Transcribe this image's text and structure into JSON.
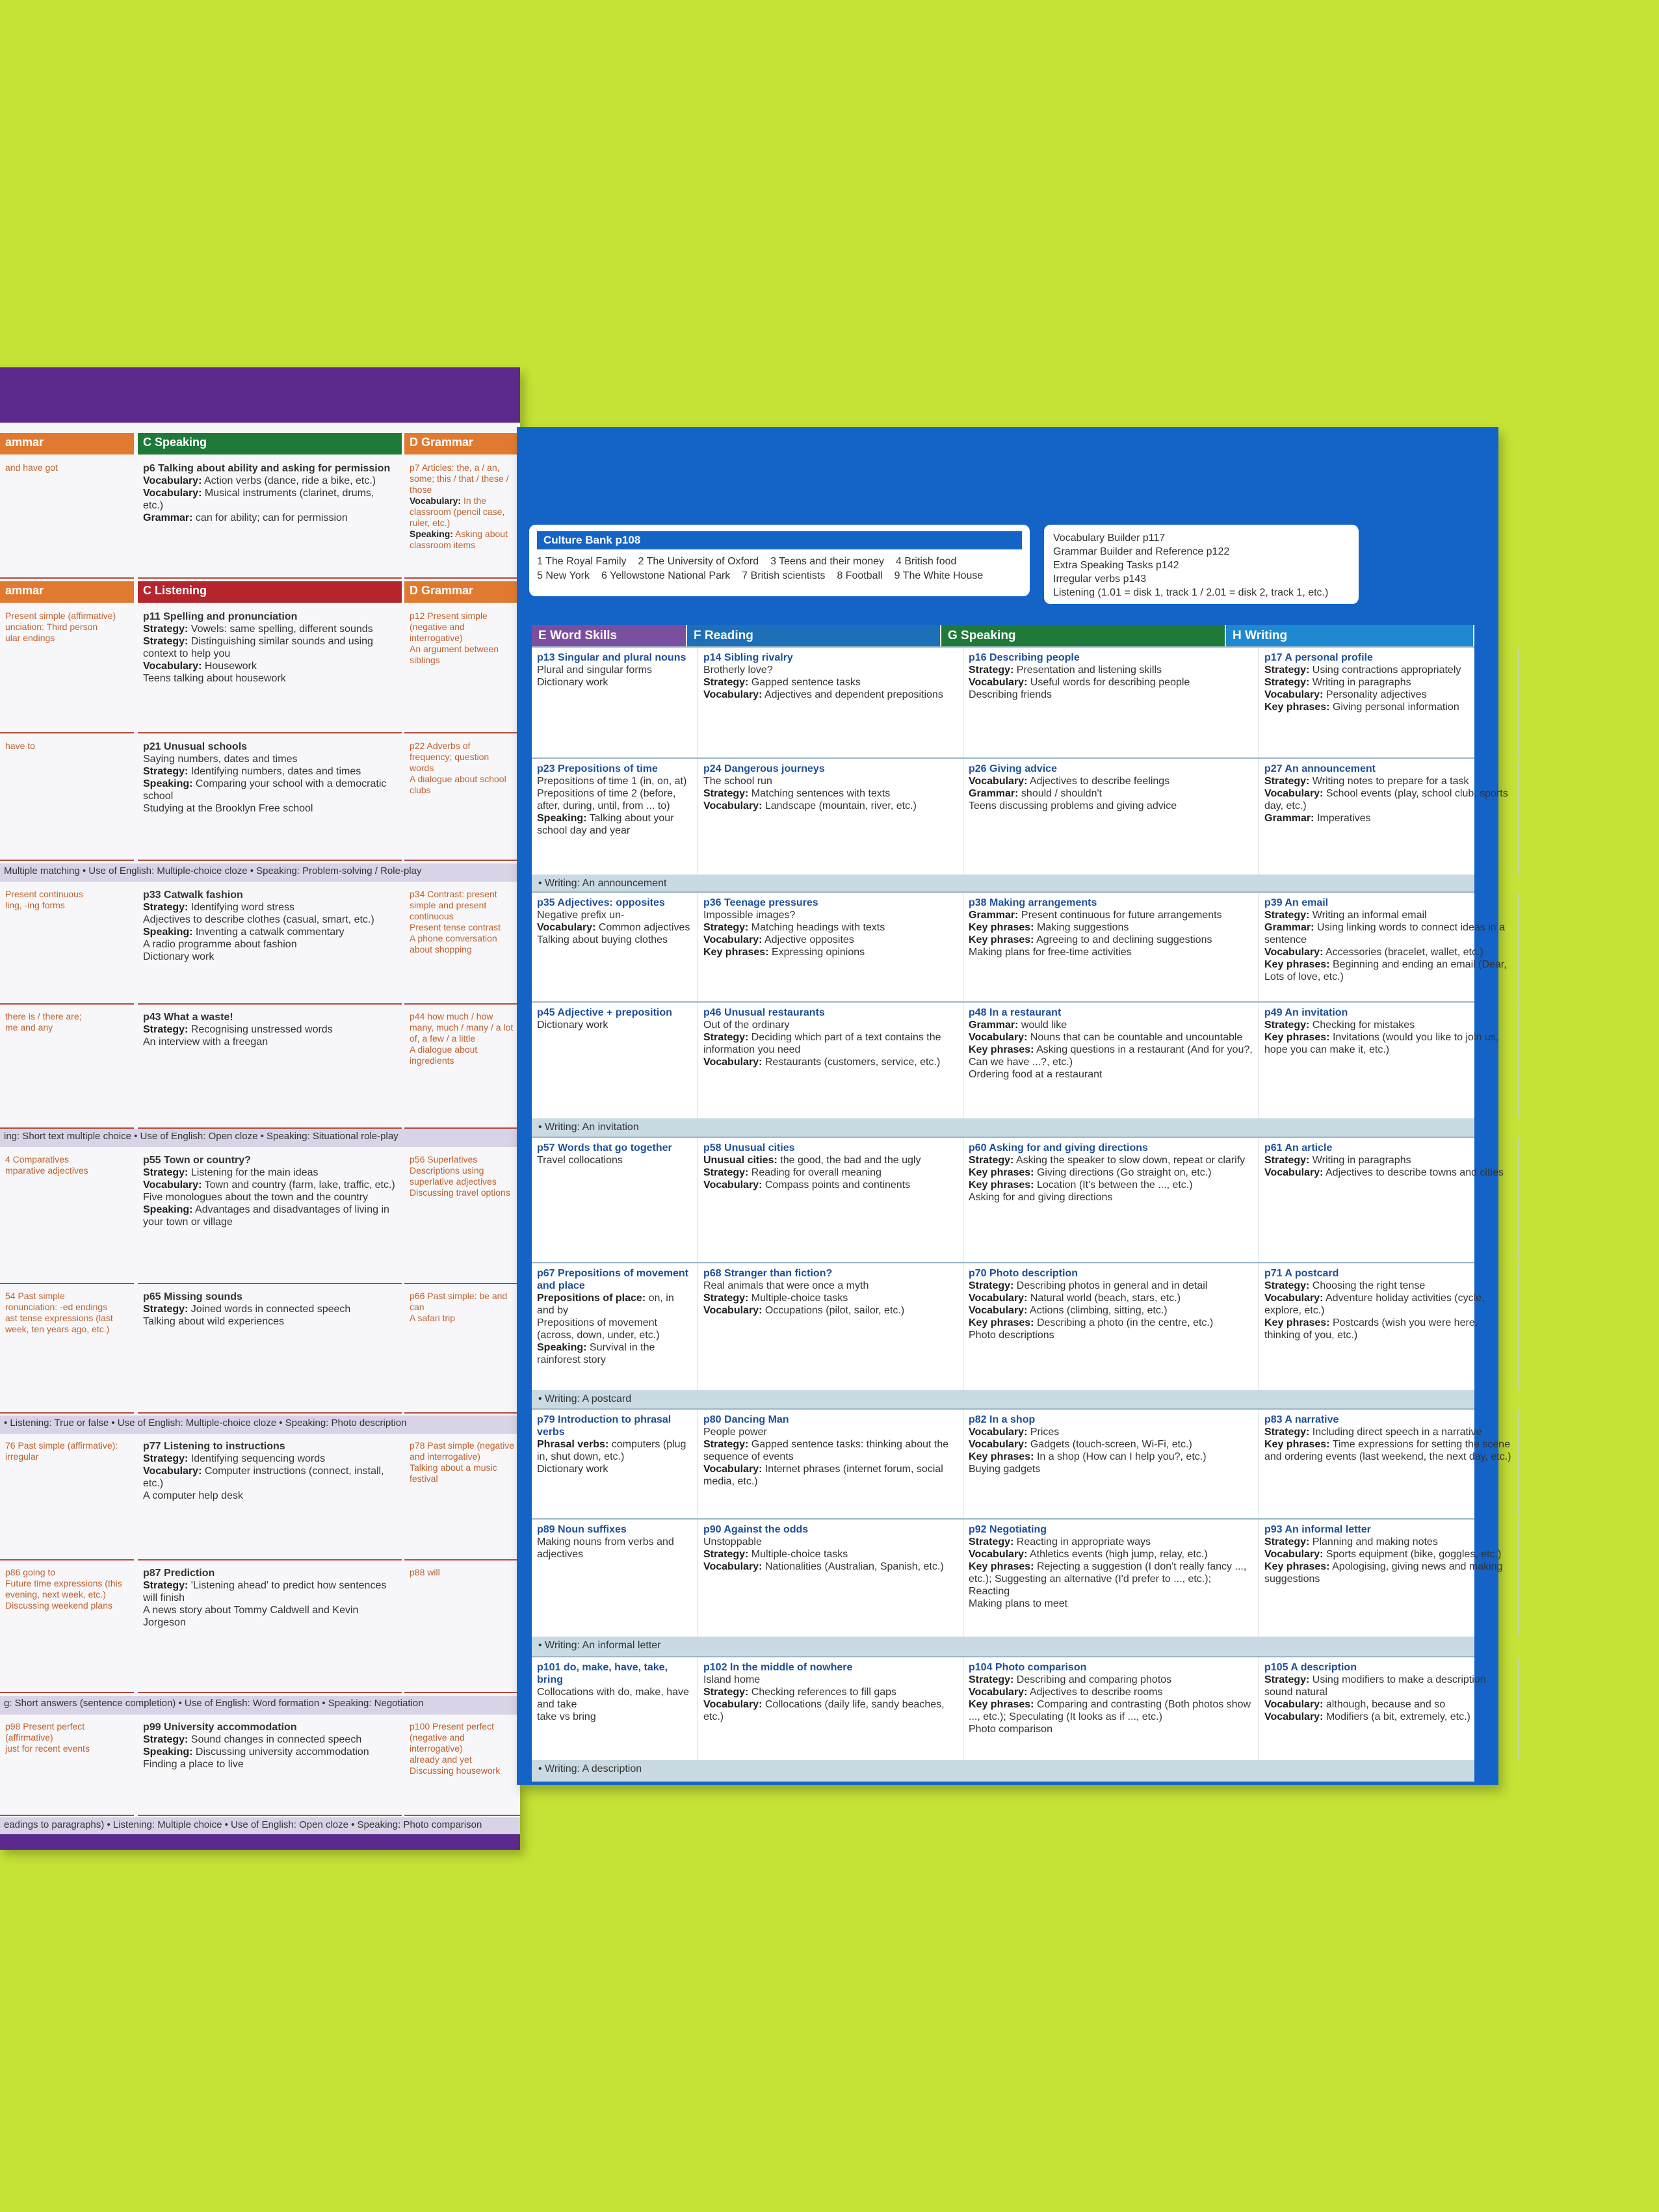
{
  "left_page": {
    "sections": [
      {
        "headers": [
          "ammar",
          "C Speaking",
          "D Grammar"
        ]
      },
      {
        "cells": [
          {
            "lines": [
              "and have got"
            ]
          },
          {
            "title": "p6 Talking about ability and asking for permission",
            "lines": [
              "Vocabulary: Action verbs (dance, ride a bike, etc.)",
              "Vocabulary: Musical instruments (clarinet, drums, etc.)",
              "Grammar: can for ability; can for permission"
            ]
          },
          {
            "lines": [
              "p7 Articles: the, a / an, some; this / that / these / those",
              "Vocabulary: In the classroom (pencil case, ruler, etc.)",
              "Speaking: Asking about classroom items"
            ]
          }
        ]
      },
      {
        "headers": [
          "ammar",
          "C Listening",
          "D Grammar"
        ]
      },
      {
        "cells": [
          {
            "lines": [
              "Present simple (affirmative)",
              "unciation: Third person",
              "ular endings"
            ]
          },
          {
            "title": "p11 Spelling and pronunciation",
            "lines": [
              "Strategy: Vowels: same spelling, different sounds",
              "Strategy: Distinguishing similar sounds and using context to help you",
              "Vocabulary: Housework",
              "Teens talking about housework"
            ]
          },
          {
            "lines": [
              "p12 Present simple (negative and interrogative)",
              "An argument between siblings"
            ]
          }
        ]
      },
      {
        "cells": [
          {
            "lines": [
              "have to"
            ]
          },
          {
            "title": "p21 Unusual schools",
            "lines": [
              "Saying numbers, dates and times",
              "Strategy: Identifying numbers, dates and times",
              "Speaking: Comparing your school with a democratic school",
              "Studying at the Brooklyn Free school"
            ]
          },
          {
            "lines": [
              "p22 Adverbs of frequency; question words",
              "A dialogue about school clubs"
            ]
          }
        ]
      },
      {
        "bar": "Multiple matching • Use of English: Multiple-choice cloze • Speaking: Problem-solving / Role-play"
      },
      {
        "cells": [
          {
            "lines": [
              "Present continuous",
              "ling, -ing forms"
            ]
          },
          {
            "title": "p33 Catwalk fashion",
            "lines": [
              "Strategy: Identifying word stress",
              "Adjectives to describe clothes (casual, smart, etc.)",
              "Speaking: Inventing a catwalk commentary",
              "A radio programme about fashion",
              "Dictionary work"
            ]
          },
          {
            "lines": [
              "p34 Contrast: present simple and present continuous",
              "Present tense contrast",
              "A phone conversation about shopping"
            ]
          }
        ]
      },
      {
        "cells": [
          {
            "lines": [
              "there is / there are;",
              "me and any"
            ]
          },
          {
            "title": "p43 What a waste!",
            "lines": [
              "Strategy: Recognising unstressed words",
              "An interview with a freegan"
            ]
          },
          {
            "lines": [
              "p44 how much / how many, much / many / a lot of, a few / a little",
              "A dialogue about ingredients"
            ]
          }
        ]
      },
      {
        "bar": "ing: Short text multiple choice • Use of English: Open cloze • Speaking: Situational role-play"
      },
      {
        "cells": [
          {
            "lines": [
              "4 Comparatives",
              "mparative adjectives"
            ]
          },
          {
            "title": "p55 Town or country?",
            "lines": [
              "Strategy: Listening for the main ideas",
              "Vocabulary: Town and country (farm, lake, traffic, etc.)",
              "Five monologues about the town and the country",
              "Speaking: Advantages and disadvantages of living in your town or village"
            ]
          },
          {
            "lines": [
              "p56 Superlatives",
              "Descriptions using superlative adjectives",
              "Discussing travel options"
            ]
          }
        ]
      },
      {
        "cells": [
          {
            "lines": [
              "54 Past simple",
              "ronunciation: -ed endings",
              "ast tense expressions (last week, ten years ago, etc.)"
            ]
          },
          {
            "title": "p65 Missing sounds",
            "lines": [
              "Strategy: Joined words in connected speech",
              "Talking about wild experiences"
            ]
          },
          {
            "lines": [
              "p66 Past simple: be and can",
              "A safari trip"
            ]
          }
        ]
      },
      {
        "bar": "• Listening: True or false • Use of English: Multiple-choice cloze • Speaking: Photo description"
      },
      {
        "cells": [
          {
            "lines": [
              "76 Past simple (affirmative): irregular"
            ]
          },
          {
            "title": "p77 Listening to instructions",
            "lines": [
              "Strategy: Identifying sequencing words",
              "Vocabulary: Computer instructions (connect, install, etc.)",
              "A computer help desk"
            ]
          },
          {
            "lines": [
              "p78 Past simple (negative and interrogative)",
              "Talking about a music festival"
            ]
          }
        ]
      },
      {
        "cells": [
          {
            "lines": [
              "p86 going to",
              "Future time expressions (this evening, next week, etc.)",
              "Discussing weekend plans"
            ]
          },
          {
            "title": "p87 Prediction",
            "lines": [
              "Strategy: 'Listening ahead' to predict how sentences will finish",
              "A news story about Tommy Caldwell and Kevin Jorgeson"
            ]
          },
          {
            "lines": [
              "p88 will"
            ]
          }
        ]
      },
      {
        "bar": "g: Short answers (sentence completion) • Use of English: Word formation • Speaking: Negotiation"
      },
      {
        "cells": [
          {
            "lines": [
              "p98 Present perfect (affirmative)",
              "just for recent events"
            ]
          },
          {
            "title": "p99 University accommodation",
            "lines": [
              "Strategy: Sound changes in connected speech",
              "Speaking: Discussing university accommodation",
              "Finding a place to live"
            ]
          },
          {
            "lines": [
              "p100 Present perfect (negative and interrogative)",
              "already and yet",
              "Discussing housework"
            ]
          }
        ]
      },
      {
        "bar": "eadings to paragraphs) • Listening: Multiple choice • Use of English: Open cloze • Speaking: Photo comparison"
      }
    ]
  },
  "culture_bank": {
    "title": "Culture Bank p108",
    "items": [
      "1 The Royal Family",
      "2 The University of Oxford",
      "3 Teens and their money",
      "4 British food",
      "5 New York",
      "6 Yellowstone National Park",
      "7 British scientists",
      "8 Football",
      "9 The White House"
    ]
  },
  "references": [
    "Vocabulary Builder p117",
    "Grammar Builder and Reference p122",
    "Extra Speaking Tasks p142",
    "Irregular verbs p143",
    "Listening (1.01 = disk 1, track 1 / 2.01 = disk 2, track 1, etc.)"
  ],
  "table": {
    "headers": [
      "E Word Skills",
      "F Reading",
      "G Speaking",
      "H Writing"
    ],
    "rows": [
      {
        "cells": [
          {
            "title": "p13 Singular and plural nouns",
            "lines": [
              "Plural and singular forms",
              "Dictionary work"
            ]
          },
          {
            "title": "p14 Sibling rivalry",
            "lines": [
              "Brotherly love?",
              "Strategy: Gapped sentence tasks",
              "Vocabulary: Adjectives and dependent prepositions"
            ]
          },
          {
            "title": "p16 Describing people",
            "lines": [
              "Strategy: Presentation and listening skills",
              "Vocabulary: Useful words for describing people",
              "Describing friends"
            ]
          },
          {
            "title": "p17 A personal profile",
            "lines": [
              "Strategy: Using contractions appropriately",
              "Strategy: Writing in paragraphs",
              "Vocabulary: Personality adjectives",
              "Key phrases: Giving personal information"
            ]
          }
        ]
      },
      {
        "cells": [
          {
            "title": "p23 Prepositions of time",
            "lines": [
              "Prepositions of time 1 (in, on, at)",
              "Prepositions of time 2 (before, after, during, until, from ... to)",
              "Speaking: Talking about your school day and year"
            ]
          },
          {
            "title": "p24 Dangerous journeys",
            "lines": [
              "The school run",
              "Strategy: Matching sentences with texts",
              "Vocabulary: Landscape (mountain, river, etc.)"
            ]
          },
          {
            "title": "p26 Giving advice",
            "lines": [
              "Vocabulary: Adjectives to describe feelings",
              "Grammar: should / shouldn't",
              "Teens discussing problems and giving advice"
            ]
          },
          {
            "title": "p27 An announcement",
            "lines": [
              "Strategy: Writing notes to prepare for a task",
              "Vocabulary: School events (play, school club, sports day, etc.)",
              "Grammar: Imperatives"
            ]
          }
        ]
      },
      {
        "band": "• Writing: An announcement"
      },
      {
        "cells": [
          {
            "title": "p35 Adjectives: opposites",
            "lines": [
              "Negative prefix un-",
              "Vocabulary: Common adjectives",
              "Talking about buying clothes"
            ]
          },
          {
            "title": "p36 Teenage pressures",
            "lines": [
              "Impossible images?",
              "Strategy: Matching headings with texts",
              "Vocabulary: Adjective opposites",
              "Key phrases: Expressing opinions"
            ]
          },
          {
            "title": "p38 Making arrangements",
            "lines": [
              "Grammar: Present continuous for future arrangements",
              "Key phrases: Making suggestions",
              "Key phrases: Agreeing to and declining suggestions",
              "Making plans for free-time activities"
            ]
          },
          {
            "title": "p39 An email",
            "lines": [
              "Strategy: Writing an informal email",
              "Grammar: Using linking words to connect ideas in a sentence",
              "Vocabulary: Accessories (bracelet, wallet, etc.)",
              "Key phrases: Beginning and ending an email (Dear, Lots of love, etc.)"
            ]
          }
        ]
      },
      {
        "cells": [
          {
            "title": "p45 Adjective + preposition",
            "lines": [
              "Dictionary work"
            ]
          },
          {
            "title": "p46 Unusual restaurants",
            "lines": [
              "Out of the ordinary",
              "Strategy: Deciding which part of a text contains the information you need",
              "Vocabulary: Restaurants (customers, service, etc.)"
            ]
          },
          {
            "title": "p48 In a restaurant",
            "lines": [
              "Grammar: would like",
              "Vocabulary: Nouns that can be countable and uncountable",
              "Key phrases: Asking questions in a restaurant (And for you?, Can we have ...?, etc.)",
              "Ordering food at a restaurant"
            ]
          },
          {
            "title": "p49 An invitation",
            "lines": [
              "Strategy: Checking for mistakes",
              "Key phrases: Invitations (would you like to join us, hope you can make it, etc.)"
            ]
          }
        ]
      },
      {
        "band": "• Writing: An invitation"
      },
      {
        "cells": [
          {
            "title": "p57 Words that go together",
            "lines": [
              "Travel collocations"
            ]
          },
          {
            "title": "p58 Unusual cities",
            "lines": [
              "Unusual cities: the good, the bad and the ugly",
              "Strategy: Reading for overall meaning",
              "Vocabulary: Compass points and continents"
            ]
          },
          {
            "title": "p60 Asking for and giving directions",
            "lines": [
              "Strategy: Asking the speaker to slow down, repeat or clarify",
              "Key phrases: Giving directions (Go straight on, etc.)",
              "Key phrases: Location (It's between the ..., etc.)",
              "Asking for and giving directions"
            ]
          },
          {
            "title": "p61 An article",
            "lines": [
              "Strategy: Writing in paragraphs",
              "Vocabulary: Adjectives to describe towns and cities"
            ]
          }
        ]
      },
      {
        "cells": [
          {
            "title": "p67 Prepositions of movement and place",
            "lines": [
              "Prepositions of place: on, in and by",
              "Prepositions of movement (across, down, under, etc.)",
              "Speaking: Survival in the rainforest story"
            ]
          },
          {
            "title": "p68 Stranger than fiction?",
            "lines": [
              "Real animals that were once a myth",
              "Strategy: Multiple-choice tasks",
              "Vocabulary: Occupations (pilot, sailor, etc.)"
            ]
          },
          {
            "title": "p70 Photo description",
            "lines": [
              "Strategy: Describing photos in general and in detail",
              "Vocabulary: Natural world (beach, stars, etc.)",
              "Vocabulary: Actions (climbing, sitting, etc.)",
              "Key phrases: Describing a photo (in the centre, etc.)",
              "Photo descriptions"
            ]
          },
          {
            "title": "p71 A postcard",
            "lines": [
              "Strategy: Choosing the right tense",
              "Vocabulary: Adventure holiday activities (cycle, explore, etc.)",
              "Key phrases: Postcards (wish you were here, thinking of you, etc.)"
            ]
          }
        ]
      },
      {
        "band": "• Writing: A postcard"
      },
      {
        "cells": [
          {
            "title": "p79 Introduction to phrasal verbs",
            "lines": [
              "Phrasal verbs: computers (plug in, shut down, etc.)",
              "Dictionary work"
            ]
          },
          {
            "title": "p80 Dancing Man",
            "lines": [
              "People power",
              "Strategy: Gapped sentence tasks: thinking about the sequence of events",
              "Vocabulary: Internet phrases (internet forum, social media, etc.)"
            ]
          },
          {
            "title": "p82 In a shop",
            "lines": [
              "Vocabulary: Prices",
              "Vocabulary: Gadgets (touch-screen, Wi-Fi, etc.)",
              "Key phrases: In a shop (How can I help you?, etc.)",
              "Buying gadgets"
            ]
          },
          {
            "title": "p83 A narrative",
            "lines": [
              "Strategy: Including direct speech in a narrative",
              "Key phrases: Time expressions for setting the scene and ordering events (last weekend, the next day, etc.)"
            ]
          }
        ]
      },
      {
        "cells": [
          {
            "title": "p89 Noun suffixes",
            "lines": [
              "Making nouns from verbs and adjectives"
            ]
          },
          {
            "title": "p90 Against the odds",
            "lines": [
              "Unstoppable",
              "Strategy: Multiple-choice tasks",
              "Vocabulary: Nationalities (Australian, Spanish, etc.)"
            ]
          },
          {
            "title": "p92 Negotiating",
            "lines": [
              "Strategy: Reacting in appropriate ways",
              "Vocabulary: Athletics events (high jump, relay, etc.)",
              "Key phrases: Rejecting a suggestion (I don't really fancy ..., etc.); Suggesting an alternative (I'd prefer to ..., etc.); Reacting",
              "Making plans to meet"
            ]
          },
          {
            "title": "p93 An informal letter",
            "lines": [
              "Strategy: Planning and making notes",
              "Vocabulary: Sports equipment (bike, goggles, etc.)",
              "Key phrases: Apologising, giving news and making suggestions"
            ]
          }
        ]
      },
      {
        "band": "• Writing: An informal letter"
      },
      {
        "cells": [
          {
            "title": "p101 do, make, have, take, bring",
            "lines": [
              "Collocations with do, make, have and take",
              "take vs bring"
            ]
          },
          {
            "title": "p102 In the middle of nowhere",
            "lines": [
              "Island home",
              "Strategy: Checking references to fill gaps",
              "Vocabulary: Collocations (daily life, sandy beaches, etc.)"
            ]
          },
          {
            "title": "p104 Photo comparison",
            "lines": [
              "Strategy: Describing and comparing photos",
              "Vocabulary: Adjectives to describe rooms",
              "Key phrases: Comparing and contrasting (Both photos show ..., etc.); Speculating (It looks as if ..., etc.)",
              "Photo comparison"
            ]
          },
          {
            "title": "p105 A description",
            "lines": [
              "Strategy: Using modifiers to make a description sound natural",
              "Vocabulary: although, because and so",
              "Vocabulary: Modifiers (a bit, extremely, etc.)"
            ]
          }
        ]
      },
      {
        "band": "• Writing: A description"
      }
    ]
  }
}
